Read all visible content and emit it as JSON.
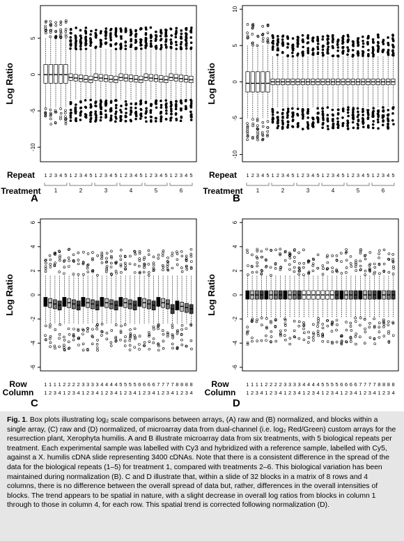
{
  "figure": {
    "panels": [
      {
        "id": "A",
        "letter": "A",
        "ylabel": "Log Ratio",
        "row1_label": "Repeat",
        "row2_label": "Treatment",
        "yticks": [
          "5",
          "0",
          "-5",
          "-10"
        ],
        "row1_ticks": [
          "1",
          "2",
          "3",
          "4",
          "5",
          "1",
          "2",
          "3",
          "4",
          "5",
          "1",
          "2",
          "3",
          "4",
          "5",
          "1",
          "2",
          "3",
          "4",
          "5",
          "1",
          "2",
          "3",
          "4",
          "5",
          "1",
          "2",
          "3",
          "4",
          "5"
        ],
        "groups": [
          "1",
          "2",
          "3",
          "4",
          "5",
          "6"
        ]
      },
      {
        "id": "B",
        "letter": "B",
        "ylabel": "Log Ratio",
        "row1_label": "Repeat",
        "row2_label": "Treatment",
        "yticks": [
          "10",
          "5",
          "0",
          "-5",
          "-10"
        ],
        "row1_ticks": [
          "1",
          "2",
          "3",
          "4",
          "5",
          "1",
          "2",
          "3",
          "4",
          "5",
          "1",
          "2",
          "3",
          "4",
          "5",
          "1",
          "2",
          "3",
          "4",
          "5",
          "1",
          "2",
          "3",
          "4",
          "5",
          "1",
          "2",
          "3",
          "4",
          "5"
        ],
        "groups": [
          "1",
          "2",
          "3",
          "4",
          "5",
          "6"
        ]
      },
      {
        "id": "C",
        "letter": "C",
        "ylabel": "Log Ratio",
        "row1_label": "Row",
        "row2_label": "Column",
        "yticks": [
          "6",
          "4",
          "2",
          "0",
          "-2",
          "-4",
          "-6"
        ],
        "row1_ticks": [
          "1",
          "1",
          "1",
          "1",
          "2",
          "2",
          "2",
          "2",
          "3",
          "3",
          "3",
          "3",
          "4",
          "4",
          "4",
          "4",
          "5",
          "5",
          "5",
          "5",
          "6",
          "6",
          "6",
          "6",
          "7",
          "7",
          "7",
          "7",
          "8",
          "8",
          "8",
          "8"
        ],
        "row2_ticks": [
          "1",
          "2",
          "3",
          "4",
          "1",
          "2",
          "3",
          "4",
          "1",
          "2",
          "3",
          "4",
          "1",
          "2",
          "3",
          "4",
          "1",
          "2",
          "3",
          "4",
          "1",
          "2",
          "3",
          "4",
          "1",
          "2",
          "3",
          "4",
          "1",
          "2",
          "3",
          "4"
        ]
      },
      {
        "id": "D",
        "letter": "D",
        "ylabel": "Log Ratio",
        "row1_label": "Row",
        "row2_label": "Column",
        "yticks": [
          "6",
          "4",
          "2",
          "0",
          "-2",
          "-4",
          "-6"
        ],
        "row1_ticks": [
          "1",
          "1",
          "1",
          "1",
          "2",
          "2",
          "2",
          "2",
          "3",
          "3",
          "3",
          "3",
          "4",
          "4",
          "4",
          "4",
          "5",
          "5",
          "5",
          "5",
          "6",
          "6",
          "6",
          "6",
          "7",
          "7",
          "7",
          "7",
          "8",
          "8",
          "8",
          "8"
        ],
        "row2_ticks": [
          "1",
          "2",
          "3",
          "4",
          "1",
          "2",
          "3",
          "4",
          "1",
          "2",
          "3",
          "4",
          "1",
          "2",
          "3",
          "4",
          "1",
          "2",
          "3",
          "4",
          "1",
          "2",
          "3",
          "4",
          "1",
          "2",
          "3",
          "4",
          "1",
          "2",
          "3",
          "4"
        ]
      }
    ]
  },
  "caption": {
    "label": "Fig. 1",
    "text": ". Box plots illustrating log₂ scale comparisons between arrays, (A) raw and (B) normalized, and blocks within a single array, (C) raw and (D) normalized, of microarray data from dual-channel (i.e. log₂ Red/Green) custom arrays for the resurrection plant, Xerophyta humilis. A and B illustrate microarray data from six treatments, with 5 biological repeats per treatment. Each experimental sample was labelled with Cy3 and hybridized with a reference sample, labelled with Cy5, against a X. humilis cDNA slide representing 3400 cDNAs. Note that there is a consistent difference in the spread of the data for the biological repeats (1–5) for treatment 1, compared with treatments 2–6. This biological variation has been maintained during normalization (B). C and D illustrate that, within a slide of 32 blocks in a matrix of 8 rows and 4 columns, there is no difference between the overall spread of data but, rather, differences in the overall intensities of blocks. The trend appears to be spatial in nature, with a slight decrease in overall log ratios from blocks in column 1 through to those in column 4, for each row. This spatial trend is corrected following normalization (D)."
  }
}
